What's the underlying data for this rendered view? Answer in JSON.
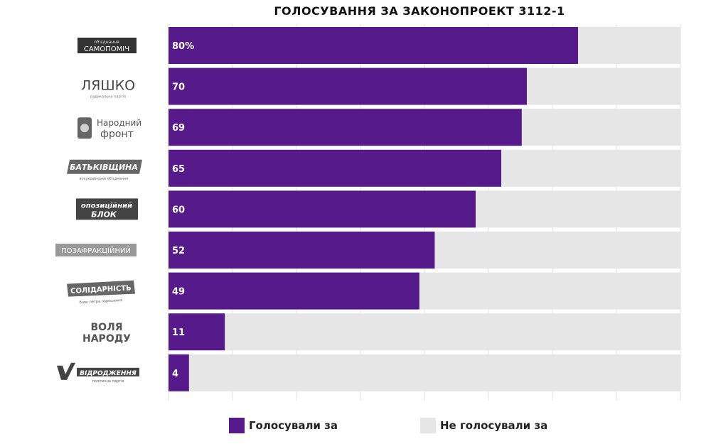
{
  "colors": {
    "voted": "#561a8b",
    "not_voted": "#e6e6e6",
    "grid": "#e2e2e2"
  },
  "chart_data": {
    "type": "bar",
    "orientation": "horizontal",
    "stacked": true,
    "title": "ГОЛОСУВАННЯ ЗА ЗАКОНОПРОЕКТ 3112-1",
    "xlim": [
      0,
      100
    ],
    "grid": true,
    "legend_placement": "bottom",
    "categories": [
      {
        "name": "САМОПОМІЧ",
        "small": "об'єднання",
        "value": 80,
        "label": "80%"
      },
      {
        "name": "ЛЯШКО",
        "small": "радикальна партія",
        "value": 70,
        "label": "70"
      },
      {
        "name": "Народний фронт",
        "value": 69,
        "label": "69"
      },
      {
        "name": "БАТЬКІВЩИНА",
        "small": "всеукраїнське об'єднання",
        "value": 65,
        "label": "65"
      },
      {
        "name": "опозиційний БЛОК",
        "value": 60,
        "label": "60"
      },
      {
        "name": "ПОЗАФРАКЦІЙНИЙ",
        "value": 52,
        "label": "52"
      },
      {
        "name": "СОЛІДАРНІСТЬ",
        "small": "блок петра порошенка",
        "value": 49,
        "label": "49"
      },
      {
        "name": "ВОЛЯ НАРОДУ",
        "value": 11,
        "label": "11"
      },
      {
        "name": "ВІДРОДЖЕННЯ",
        "small": "політична партія",
        "value": 4,
        "label": "4"
      }
    ],
    "series": [
      {
        "name": "Голосували за",
        "color": "#561a8b"
      },
      {
        "name": "Не голосували за",
        "color": "#e6e6e6"
      }
    ]
  }
}
